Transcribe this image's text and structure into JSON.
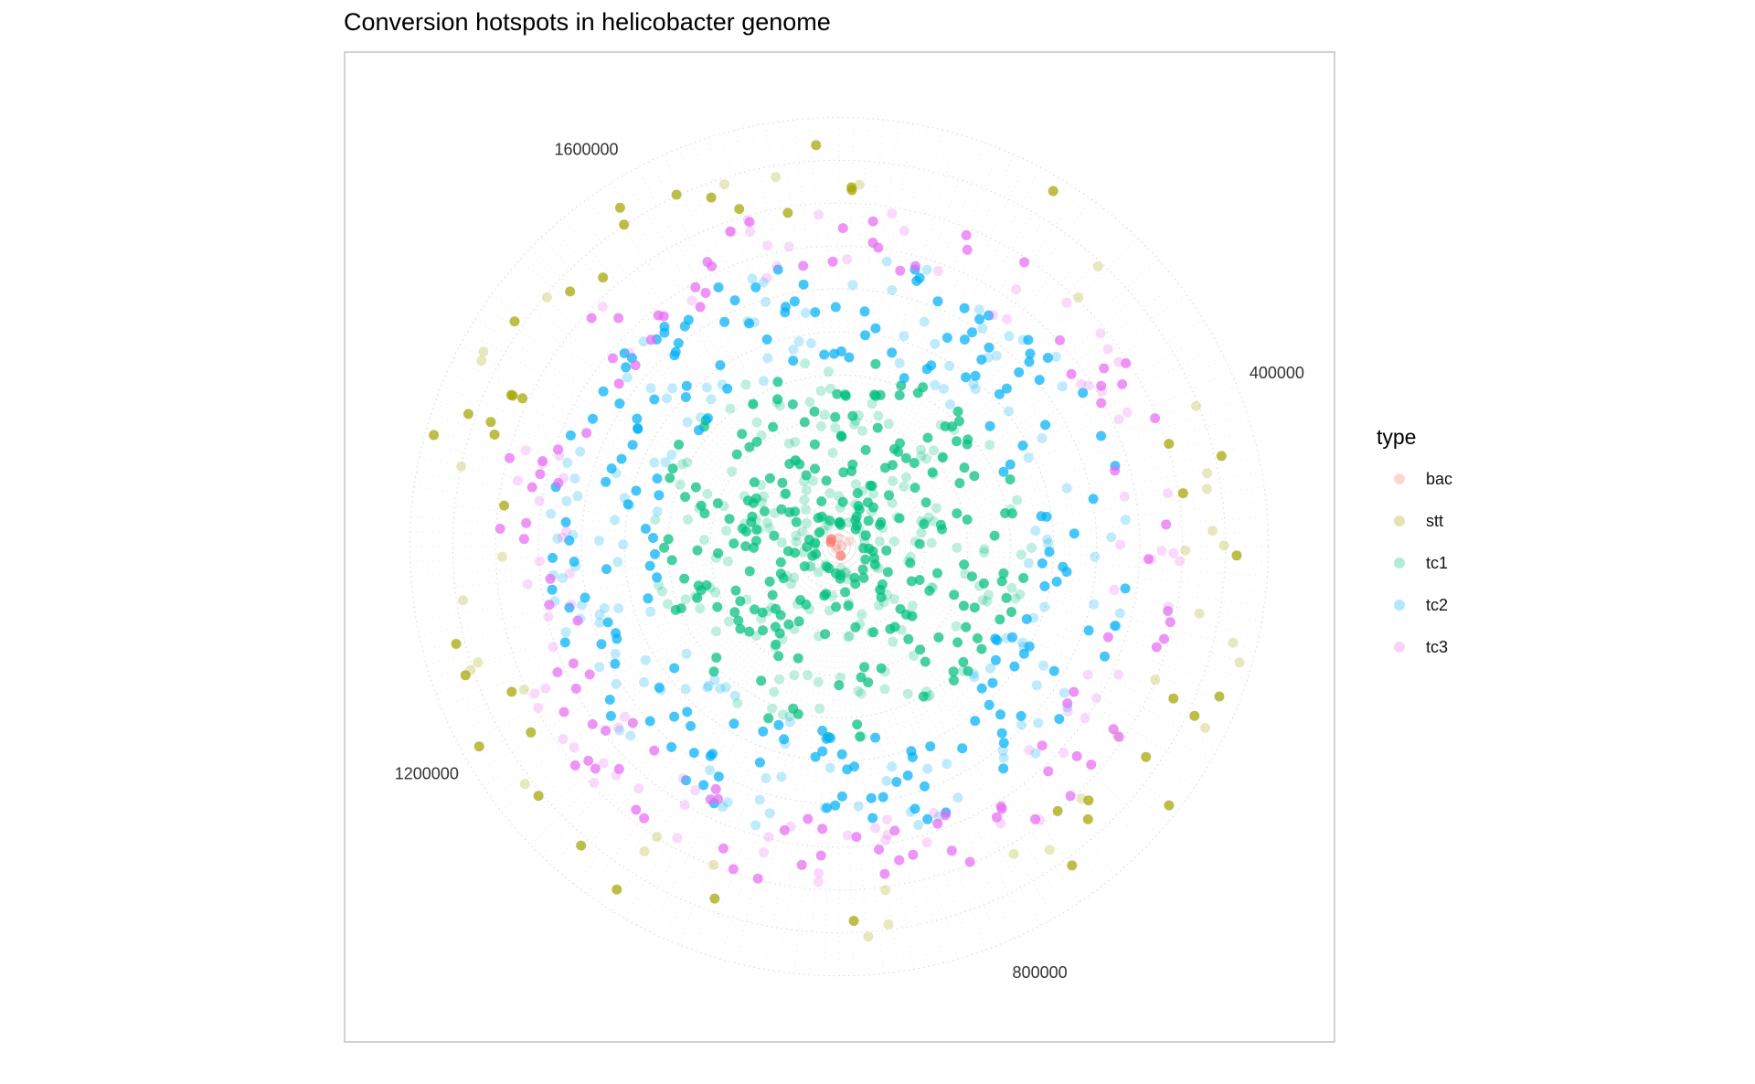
{
  "chart_data": {
    "type": "scatter",
    "coord": "polar",
    "title": "Conversion hotspots in helicobacter genome",
    "theta_axis": {
      "ticks": [
        {
          "value": 400000,
          "label": "400000"
        },
        {
          "value": 800000,
          "label": "800000"
        },
        {
          "value": 1200000,
          "label": "1200000"
        },
        {
          "value": 1600000,
          "label": "1600000"
        }
      ],
      "range": [
        0,
        1667000
      ]
    },
    "grid": true,
    "legend": {
      "title": "type",
      "placement": "right",
      "entries": [
        {
          "name": "bac",
          "color": "#F8766D"
        },
        {
          "name": "stt",
          "color": "#A3A500"
        },
        {
          "name": "tc1",
          "color": "#00BF7D"
        },
        {
          "name": "tc2",
          "color": "#00B0F6"
        },
        {
          "name": "tc3",
          "color": "#E76BF3"
        }
      ]
    },
    "series": [
      {
        "name": "bac",
        "radius_range": [
          0,
          0.03
        ],
        "density": 8
      },
      {
        "name": "stt",
        "radius_range": [
          0.78,
          0.98
        ],
        "density": 80
      },
      {
        "name": "tc1",
        "radius_range": [
          0.05,
          0.45
        ],
        "density": 450
      },
      {
        "name": "tc2",
        "radius_range": [
          0.42,
          0.68
        ],
        "density": 330
      },
      {
        "name": "tc3",
        "radius_range": [
          0.63,
          0.8
        ],
        "density": 190
      }
    ]
  }
}
